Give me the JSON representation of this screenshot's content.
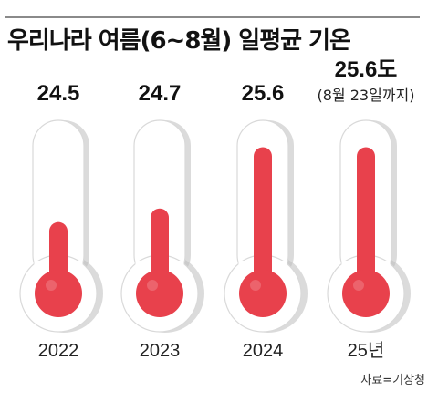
{
  "chart_data": {
    "type": "bar",
    "title": "우리나라 여름(6~8월) 일평균 기온",
    "categories": [
      "2022",
      "2023",
      "2024",
      "25년"
    ],
    "values": [
      24.5,
      24.7,
      25.6,
      25.6
    ],
    "value_labels": [
      "24.5",
      "24.7",
      "25.6",
      "25.6도"
    ],
    "annotations": [
      "(8월 23일까지)"
    ],
    "annotation_for_category": "25년",
    "ylim": [
      23.8,
      25.7
    ],
    "source": "자료=기상청",
    "colors": {
      "fill": "#e8414c",
      "fill_dark": "#c42a35",
      "tube": "#ffffff",
      "tube_outline": "#d9d9d9",
      "tube_shadow": "#bdbdbd"
    }
  }
}
